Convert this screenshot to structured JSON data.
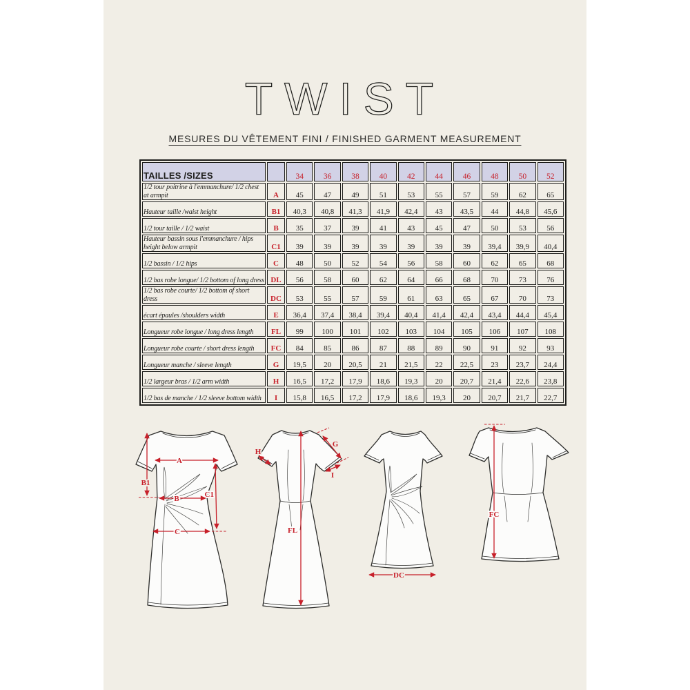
{
  "page": {
    "title": "TWIST",
    "subtitle": "MESURES DU VÊTEMENT FINI / FINISHED GARMENT MEASUREMENT"
  },
  "colors": {
    "paper": "#f1eee6",
    "table_header_fill": "#d2d2e6",
    "accent_red": "#c7202a",
    "line": "#1d1d1b"
  },
  "table": {
    "header_label": "TAILLES /SIZES",
    "sizes": [
      "34",
      "36",
      "38",
      "40",
      "42",
      "44",
      "46",
      "48",
      "50",
      "52"
    ],
    "rows": [
      {
        "label": "1/2 tour poitrine à l'emmanchure/ 1/2  chest at armpit",
        "code": "A",
        "values": [
          "45",
          "47",
          "49",
          "51",
          "53",
          "55",
          "57",
          "59",
          "62",
          "65"
        ]
      },
      {
        "label": "Hauteur taille /waist height",
        "code": "B1",
        "values": [
          "40,3",
          "40,8",
          "41,3",
          "41,9",
          "42,4",
          "43",
          "43,5",
          "44",
          "44,8",
          "45,6"
        ]
      },
      {
        "label": "1/2 tour taille /  1/2 waist",
        "code": "B",
        "values": [
          "35",
          "37",
          "39",
          "41",
          "43",
          "45",
          "47",
          "50",
          "53",
          "56"
        ]
      },
      {
        "label": "Hauteur bassin sous l'emmanchure / hips height below armpit",
        "code": "C1",
        "values": [
          "39",
          "39",
          "39",
          "39",
          "39",
          "39",
          "39",
          "39,4",
          "39,9",
          "40,4"
        ]
      },
      {
        "label": "1/2 bassin / 1/2 hips",
        "code": "C",
        "values": [
          "48",
          "50",
          "52",
          "54",
          "56",
          "58",
          "60",
          "62",
          "65",
          "68"
        ]
      },
      {
        "label": "1/2 bas robe longue/ 1/2 bottom of long dress",
        "code": "DL",
        "values": [
          "56",
          "58",
          "60",
          "62",
          "64",
          "66",
          "68",
          "70",
          "73",
          "76"
        ]
      },
      {
        "label": "1/2 bas robe courte/ 1/2 bottom of short dress",
        "code": "DC",
        "values": [
          "53",
          "55",
          "57",
          "59",
          "61",
          "63",
          "65",
          "67",
          "70",
          "73"
        ]
      },
      {
        "label": "écart épaules /shoulders width",
        "code": "E",
        "values": [
          "36,4",
          "37,4",
          "38,4",
          "39,4",
          "40,4",
          "41,4",
          "42,4",
          "43,4",
          "44,4",
          "45,4"
        ]
      },
      {
        "label": "Longueur robe longue / long dress length",
        "code": "FL",
        "values": [
          "99",
          "100",
          "101",
          "102",
          "103",
          "104",
          "105",
          "106",
          "107",
          "108"
        ]
      },
      {
        "label": "Longueur robe courte / short dress length",
        "code": "FC",
        "values": [
          "84",
          "85",
          "86",
          "87",
          "88",
          "89",
          "90",
          "91",
          "92",
          "93"
        ]
      },
      {
        "label": "Longueur manche / sleeve length",
        "code": "G",
        "values": [
          "19,5",
          "20",
          "20,5",
          "21",
          "21,5",
          "22",
          "22,5",
          "23",
          "23,7",
          "24,4"
        ]
      },
      {
        "label": "1/2 largeur bras  / 1/2 arm width",
        "code": "H",
        "values": [
          "16,5",
          "17,2",
          "17,9",
          "18,6",
          "19,3",
          "20",
          "20,7",
          "21,4",
          "22,6",
          "23,8"
        ]
      },
      {
        "label": "1/2 bas de manche / 1/2 sleeve bottom width",
        "code": "I",
        "values": [
          "15,8",
          "16,5",
          "17,2",
          "17,9",
          "18,6",
          "19,3",
          "20",
          "20,7",
          "21,7",
          "22,7"
        ]
      }
    ]
  },
  "diagrams": {
    "front_long": {
      "labels": {
        "A": "A",
        "B1": "B1",
        "B": "B",
        "C1": "C1",
        "C": "C"
      }
    },
    "back_long": {
      "labels": {
        "H": "H",
        "G": "G",
        "I": "I",
        "FL": "FL"
      }
    },
    "front_short": {
      "labels": {
        "DC": "DC"
      }
    },
    "back_short": {
      "labels": {
        "FC": "FC"
      }
    }
  }
}
